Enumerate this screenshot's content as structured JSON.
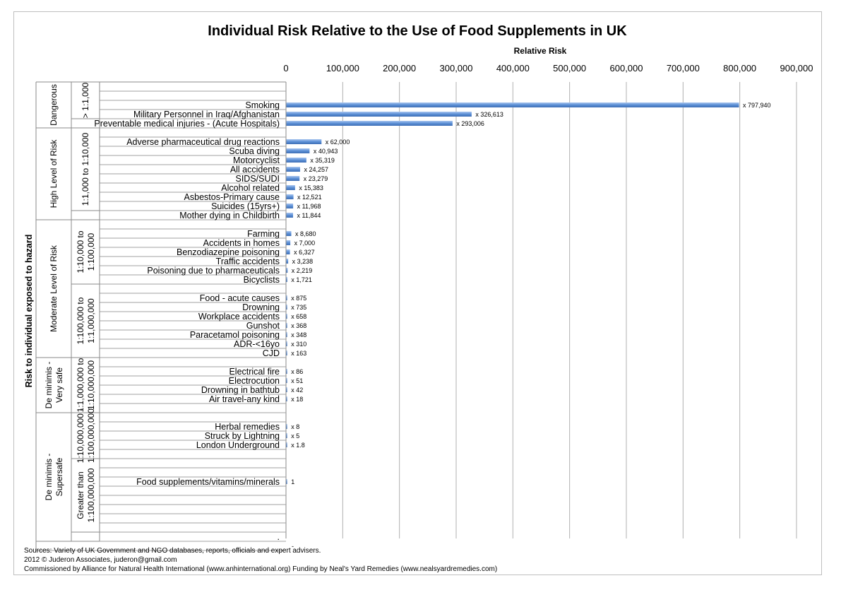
{
  "chart_data": {
    "type": "bar",
    "orientation": "horizontal",
    "title": "Individual Risk Relative to the Use of Food Supplements in UK",
    "xlabel": "Relative Risk",
    "ylabel": "Risk to individual exposed to hazard",
    "xlim": [
      0,
      900000
    ],
    "x_ticks": [
      "0",
      "100,000",
      "200,000",
      "300,000",
      "400,000",
      "500,000",
      "600,000",
      "700,000",
      "800,000",
      "900,000"
    ],
    "grid": "vertical",
    "bar_color": "#5b8fd6",
    "rows": [
      {
        "label": "",
        "value": null,
        "data_label": ""
      },
      {
        "label": "Smoking",
        "value": 797940,
        "data_label": "x 797,940"
      },
      {
        "label": "Military Personnel in Iraq/Afghanistan",
        "value": 326613,
        "data_label": "x 326,613"
      },
      {
        "label": "Preventable medical injuries - (Acute Hospitals)",
        "value": 293006,
        "data_label": "x 293,006"
      },
      {
        "label": "",
        "value": null,
        "data_label": ""
      },
      {
        "label": "Adverse pharmaceutical drug reactions",
        "value": 62000,
        "data_label": "x 62,000"
      },
      {
        "label": "Scuba diving",
        "value": 40943,
        "data_label": "x 40,943"
      },
      {
        "label": "Motorcyclist",
        "value": 35319,
        "data_label": "x 35,319"
      },
      {
        "label": "All accidents",
        "value": 24257,
        "data_label": "x 24,257"
      },
      {
        "label": "SIDS/SUDI",
        "value": 23279,
        "data_label": "x 23,279"
      },
      {
        "label": "Alcohol related",
        "value": 15383,
        "data_label": "x 15,383"
      },
      {
        "label": "Asbestos-Primary cause",
        "value": 12521,
        "data_label": "x 12,521"
      },
      {
        "label": "Suicides (15yrs+)",
        "value": 11968,
        "data_label": "x 11,968"
      },
      {
        "label": "Mother dying in Childbirth",
        "value": 11844,
        "data_label": "x 11,844"
      },
      {
        "label": "",
        "value": null,
        "data_label": ""
      },
      {
        "label": "Farming",
        "value": 8680,
        "data_label": "x 8,680"
      },
      {
        "label": "Accidents in homes",
        "value": 7000,
        "data_label": "x 7,000"
      },
      {
        "label": "Benzodiazepine poisoning",
        "value": 6327,
        "data_label": "x 6,327"
      },
      {
        "label": "Traffic accidents",
        "value": 3238,
        "data_label": "x 3,238"
      },
      {
        "label": "Poisoning due to pharmaceuticals",
        "value": 2219,
        "data_label": "x 2,219"
      },
      {
        "label": "Bicyclists",
        "value": 1721,
        "data_label": "x 1,721"
      },
      {
        "label": "",
        "value": null,
        "data_label": ""
      },
      {
        "label": "Food - acute causes",
        "value": 875,
        "data_label": "x 875"
      },
      {
        "label": "Drowning",
        "value": 735,
        "data_label": "x 735"
      },
      {
        "label": "Workplace accidents",
        "value": 658,
        "data_label": "x 658"
      },
      {
        "label": "Gunshot",
        "value": 368,
        "data_label": "x 368"
      },
      {
        "label": "Paracetamol poisoning",
        "value": 348,
        "data_label": "x 348"
      },
      {
        "label": "ADR-<16yo",
        "value": 310,
        "data_label": "x 310"
      },
      {
        "label": "CJD",
        "value": 163,
        "data_label": "x 163"
      },
      {
        "label": "",
        "value": null,
        "data_label": ""
      },
      {
        "label": "Electrical fire",
        "value": 86,
        "data_label": "x 86"
      },
      {
        "label": "Electrocution",
        "value": 51,
        "data_label": "x 51"
      },
      {
        "label": "Drowning in bathtub",
        "value": 42,
        "data_label": "x 42"
      },
      {
        "label": "Air travel-any kind",
        "value": 18,
        "data_label": "x 18"
      },
      {
        "label": "",
        "value": null,
        "data_label": ""
      },
      {
        "label": "",
        "value": null,
        "data_label": ""
      },
      {
        "label": "Herbal remedies",
        "value": 8,
        "data_label": "x 8"
      },
      {
        "label": "Struck by Lightning",
        "value": 5,
        "data_label": "x 5"
      },
      {
        "label": "London Underground",
        "value": 1.8,
        "data_label": "x 1.8"
      },
      {
        "label": "",
        "value": null,
        "data_label": ""
      },
      {
        "label": "",
        "value": null,
        "data_label": ""
      },
      {
        "label": "",
        "value": null,
        "data_label": ""
      },
      {
        "label": "Food supplements/vitamins/minerals",
        "value": 1,
        "data_label": "1"
      },
      {
        "label": "",
        "value": null,
        "data_label": ""
      },
      {
        "label": "",
        "value": null,
        "data_label": ""
      },
      {
        "label": "",
        "value": null,
        "data_label": ""
      },
      {
        "label": "",
        "value": null,
        "data_label": ""
      },
      {
        "label": "",
        "value": null,
        "data_label": ""
      },
      {
        "label": ".",
        "value": null,
        "data_label": ""
      },
      {
        "label": "",
        "value": null,
        "data_label": "-"
      }
    ],
    "groups_outer": [
      {
        "label": "Dangerous",
        "start": 0,
        "end": 3
      },
      {
        "label": "High Level of Risk",
        "start": 4,
        "end": 13
      },
      {
        "label": "Moderate Level of Risk",
        "start": 14,
        "end": 28
      },
      {
        "label": "De minimis - Very safe",
        "start": 29,
        "end": 34
      },
      {
        "label": "De minimis - Supersafe",
        "start": 35,
        "end": 48
      }
    ],
    "groups_inner": [
      {
        "lines": [
          "> 1:1,000"
        ],
        "start": 0,
        "end": 3
      },
      {
        "lines": [
          "1:1,000 to 1:10,000"
        ],
        "start": 4,
        "end": 13
      },
      {
        "lines": [
          "1:10,000 to",
          "1:100,000"
        ],
        "start": 14,
        "end": 21
      },
      {
        "lines": [
          "1:100,000 to",
          "1:1,000,000"
        ],
        "start": 21,
        "end": 29
      },
      {
        "lines": [
          "1:1,000,000 to",
          "1:10,000,000"
        ],
        "start": 29,
        "end": 35
      },
      {
        "lines": [
          "1:10,000,000 -",
          "1:100,000,000"
        ],
        "start": 35,
        "end": 40
      },
      {
        "lines": [
          "Greater than",
          "1:100,000,000"
        ],
        "start": 40,
        "end": 48
      }
    ]
  },
  "footer": [
    "Sources: Variety of UK Government and NGO databases, reports, officials and expert advisers.",
    "2012 © Juderon Associates, juderon@gmail.com",
    "Commissioned by Alliance for Natural Health International (www.anhinternational.org)  Funding by Neal's Yard Remedies (www.nealsyardremedies.com)"
  ]
}
